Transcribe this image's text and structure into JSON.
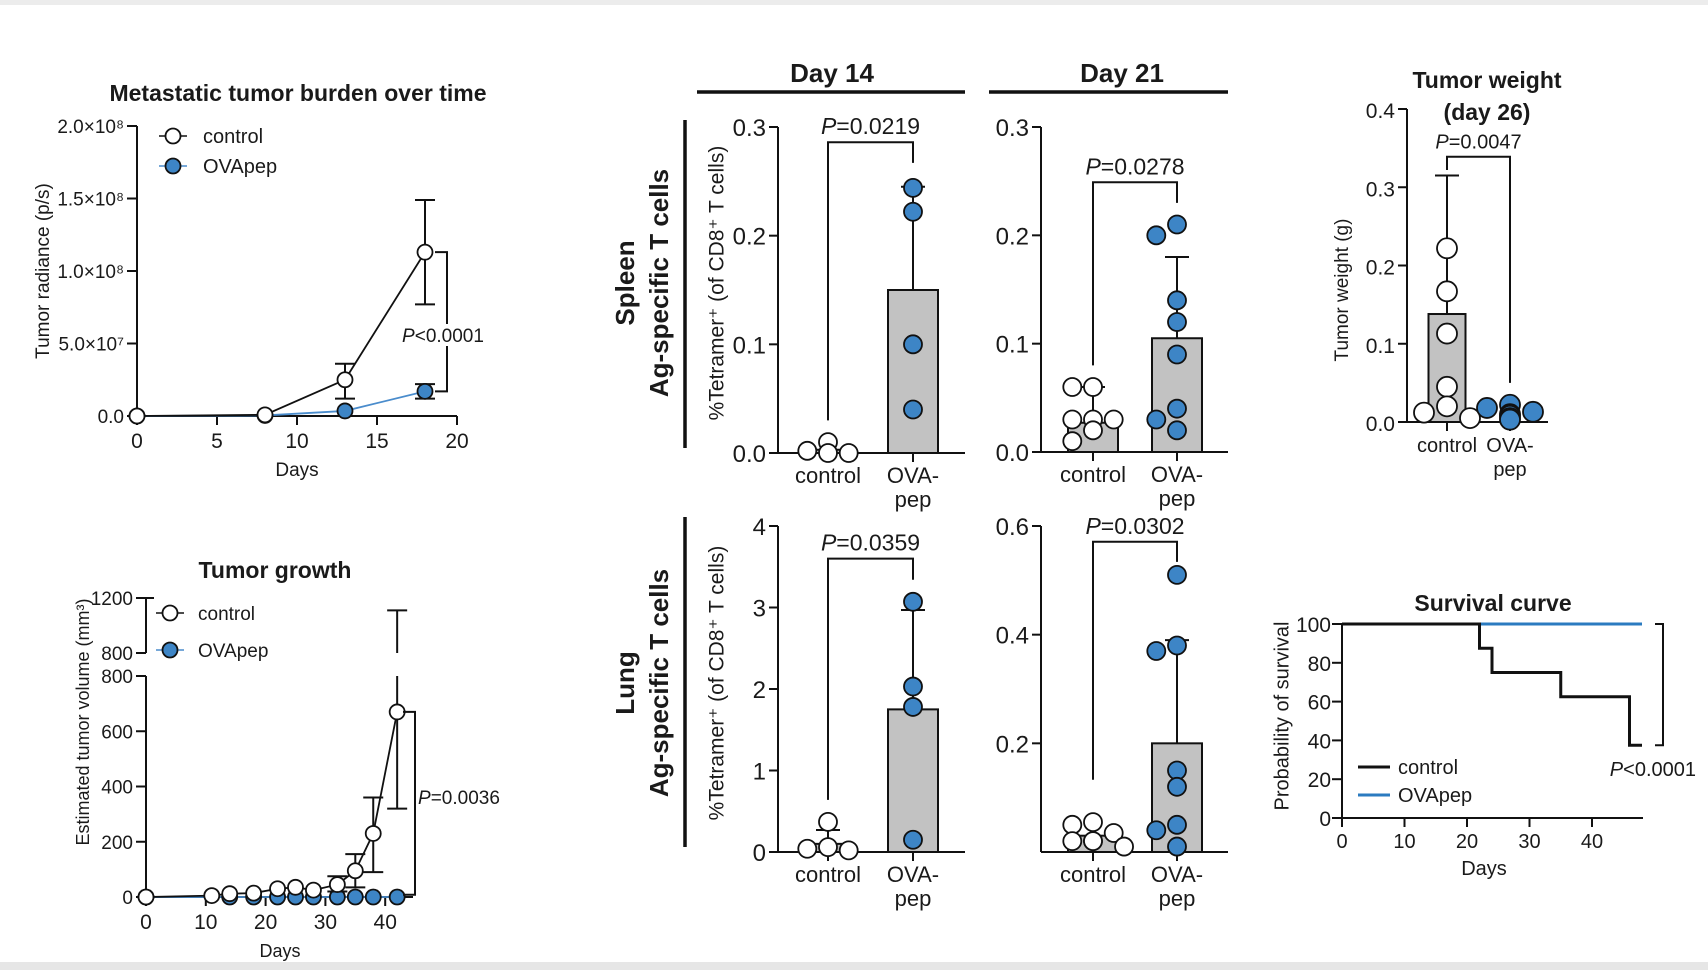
{
  "figure": {
    "col_headers": [
      "Day 14",
      "Day 21"
    ],
    "row_labels": [
      {
        "organ": "Spleen",
        "subtitle": "Ag-specific T cells"
      },
      {
        "organ": "Lung",
        "subtitle": "Ag-specific T cells"
      }
    ],
    "colors": {
      "control_fill": "#ffffff",
      "ovapep_fill": "#3d85c6",
      "ovapep_line": "#4a8ccc",
      "survival_blue": "#2b7bc0",
      "bar_gray": "#c2c2c2",
      "axis": "#111111"
    }
  },
  "chart_data": [
    {
      "id": "metastatic_burden",
      "type": "line",
      "title": "Metastatic tumor burden over time",
      "xlabel": "Days",
      "ylabel": "Tumor radiance (p/s)",
      "xlim": [
        0,
        20
      ],
      "ylim": [
        0,
        200000000
      ],
      "xticks": [
        0,
        5,
        10,
        15,
        20
      ],
      "xtick_labels": [
        "0",
        "5",
        "10",
        "15",
        "20"
      ],
      "yticks": [
        0,
        50000000,
        100000000,
        150000000,
        200000000
      ],
      "ytick_labels": [
        "0.0",
        "5.0×10⁷",
        "1.0×10⁸",
        "1.5×10⁸",
        "2.0×10⁸"
      ],
      "legend": "top-left",
      "series": [
        {
          "name": "control",
          "marker": "open",
          "x": [
            0,
            8,
            13,
            18
          ],
          "y": [
            0,
            800000,
            25000000,
            113000000
          ],
          "err_low": [
            0,
            800000,
            12000000,
            77000000
          ],
          "err_high": [
            0,
            800000,
            36000000,
            149000000
          ]
        },
        {
          "name": "OVApep",
          "marker": "filled",
          "x": [
            0,
            8,
            13,
            18
          ],
          "y": [
            0,
            400000,
            3500000,
            17000000
          ],
          "err_low": [
            0,
            400000,
            3500000,
            12000000
          ],
          "err_high": [
            0,
            400000,
            3500000,
            22000000
          ]
        }
      ],
      "significance": {
        "label": "P<0.0001",
        "x": 18,
        "y_range": [
          17000000,
          113000000
        ]
      }
    },
    {
      "id": "tumor_growth",
      "type": "line",
      "title": "Tumor growth",
      "xlabel": "Days",
      "ylabel": "Estimated tumor volume (mm³)",
      "xlim": [
        0,
        44
      ],
      "ylim": [
        0,
        1200
      ],
      "y_break": 800,
      "xticks": [
        0,
        10,
        20,
        30,
        40
      ],
      "xtick_labels": [
        "0",
        "10",
        "20",
        "30",
        "40"
      ],
      "yticks": [
        0,
        200,
        400,
        600,
        800
      ],
      "ytick_labels": [
        "0",
        "200",
        "400",
        "600",
        "800"
      ],
      "yticks_upper": [
        800,
        1200
      ],
      "ytick_labels_upper": [
        "800",
        "1200"
      ],
      "legend": "top-left",
      "series": [
        {
          "name": "control",
          "marker": "open",
          "x": [
            0,
            11,
            14,
            18,
            22,
            25,
            28,
            32,
            35,
            38,
            42
          ],
          "y": [
            0,
            5,
            12,
            14,
            30,
            35,
            25,
            45,
            95,
            230,
            670
          ],
          "err_low": [
            0,
            5,
            12,
            14,
            30,
            35,
            25,
            20,
            35,
            90,
            320
          ],
          "err_high": [
            0,
            5,
            12,
            14,
            30,
            35,
            25,
            75,
            155,
            360,
            1110
          ]
        },
        {
          "name": "OVApep",
          "marker": "filled",
          "x": [
            0,
            14,
            18,
            22,
            25,
            28,
            32,
            35,
            38,
            42
          ],
          "y": [
            0,
            0,
            0,
            0,
            0,
            0,
            0,
            0,
            0,
            0
          ],
          "err_low": [
            0,
            0,
            0,
            0,
            0,
            0,
            0,
            0,
            0,
            0
          ],
          "err_high": [
            0,
            0,
            0,
            0,
            0,
            0,
            0,
            0,
            0,
            0
          ]
        }
      ],
      "significance": {
        "label": "P=0.0036",
        "x": 42,
        "y_range": [
          8,
          670
        ]
      }
    },
    {
      "id": "spleen_day14",
      "type": "bar",
      "row": 0,
      "col": 0,
      "ylabel": "%Tetramer⁺ (of CD8⁺ T cells)",
      "ylim": [
        0,
        0.3
      ],
      "yticks": [
        0,
        0.1,
        0.2,
        0.3
      ],
      "ytick_labels": [
        "0.0",
        "0.1",
        "0.2",
        "0.3"
      ],
      "groups": [
        {
          "name": "control",
          "label_lines": [
            "control"
          ],
          "mean": 0.003,
          "sd_high": 0.003,
          "points": [
            0.01,
            0.002,
            0.0,
            0.0
          ],
          "style": "open"
        },
        {
          "name": "OVA-pep",
          "label_lines": [
            "OVA-",
            "pep"
          ],
          "mean": 0.15,
          "sd_high": 0.245,
          "points": [
            0.244,
            0.222,
            0.1,
            0.04
          ],
          "style": "filled"
        }
      ],
      "significance": {
        "label": "P=0.0219",
        "top": 0.286,
        "left_end": 0.03,
        "right_end": 0.267
      }
    },
    {
      "id": "spleen_day21",
      "type": "bar",
      "row": 0,
      "col": 1,
      "ylim": [
        0,
        0.3
      ],
      "yticks": [
        0,
        0.1,
        0.2,
        0.3
      ],
      "ytick_labels": [
        "0.0",
        "0.1",
        "0.2",
        "0.3"
      ],
      "groups": [
        {
          "name": "control",
          "label_lines": [
            "control"
          ],
          "mean": 0.027,
          "sd_high": 0.06,
          "points": [
            0.06,
            0.06,
            0.03,
            0.03,
            0.03,
            0.02,
            0.01
          ],
          "style": "open"
        },
        {
          "name": "OVA-pep",
          "label_lines": [
            "OVA-",
            "pep"
          ],
          "mean": 0.105,
          "sd_high": 0.18,
          "points": [
            0.21,
            0.2,
            0.14,
            0.12,
            0.09,
            0.04,
            0.03,
            0.02
          ],
          "style": "filled"
        }
      ],
      "significance": {
        "label": "P=0.0278",
        "top": 0.249,
        "left_end": 0.08,
        "right_end": 0.23
      }
    },
    {
      "id": "lung_day14",
      "type": "bar",
      "row": 1,
      "col": 0,
      "ylabel": "%Tetramer⁺ (of CD8⁺ T cells)",
      "ylim": [
        0,
        4
      ],
      "yticks": [
        0,
        1,
        2,
        3,
        4
      ],
      "ytick_labels": [
        "0",
        "1",
        "2",
        "3",
        "4"
      ],
      "groups": [
        {
          "name": "control",
          "label_lines": [
            "control"
          ],
          "mean": 0.1,
          "sd_high": 0.27,
          "points": [
            0.37,
            0.06,
            0.04,
            0.02
          ],
          "style": "open"
        },
        {
          "name": "OVA-pep",
          "label_lines": [
            "OVA-",
            "pep"
          ],
          "mean": 1.75,
          "sd_high": 2.97,
          "points": [
            3.07,
            2.03,
            1.78,
            0.15
          ],
          "style": "filled"
        }
      ],
      "significance": {
        "label": "P=0.0359",
        "top": 3.6,
        "left_end": 0.64,
        "right_end": 3.34
      }
    },
    {
      "id": "lung_day21",
      "type": "bar",
      "row": 1,
      "col": 1,
      "ylim": [
        0,
        0.6
      ],
      "yticks": [
        0.2,
        0.4,
        0.6
      ],
      "ytick_labels": [
        "0.2",
        "0.4",
        "0.6"
      ],
      "groups": [
        {
          "name": "control",
          "label_lines": [
            "control"
          ],
          "mean": 0.03,
          "sd_high": 0.03,
          "points": [
            0.055,
            0.05,
            0.035,
            0.02,
            0.02,
            0.02,
            0.01
          ],
          "style": "open"
        },
        {
          "name": "OVA-pep",
          "label_lines": [
            "OVA-",
            "pep"
          ],
          "mean": 0.2,
          "sd_high": 0.39,
          "points": [
            0.51,
            0.38,
            0.37,
            0.15,
            0.12,
            0.05,
            0.04,
            0.01
          ],
          "style": "filled"
        }
      ],
      "significance": {
        "label": "P=0.0302",
        "top": 0.571,
        "left_end": 0.133,
        "right_end": 0.534
      }
    },
    {
      "id": "tumor_weight",
      "type": "bar",
      "title_lines": [
        "Tumor weight",
        "(day 26)"
      ],
      "ylabel": "Tumor weight (g)",
      "ylim": [
        0,
        0.4
      ],
      "yticks": [
        0,
        0.1,
        0.2,
        0.3,
        0.4
      ],
      "ytick_labels": [
        "0.0",
        "0.1",
        "0.2",
        "0.3",
        "0.4"
      ],
      "groups": [
        {
          "name": "control",
          "label_lines": [
            "control"
          ],
          "mean": 0.138,
          "sd_high": 0.315,
          "points": [
            0.222,
            0.167,
            0.113,
            0.045,
            0.02,
            0.012,
            0.005
          ],
          "style": "open"
        },
        {
          "name": "OVA-pep",
          "label_lines": [
            "OVA-",
            "pep"
          ],
          "mean": 0.01,
          "sd_high": 0.01,
          "points": [
            0.022,
            0.018,
            0.013,
            0.01,
            0.008,
            0.005,
            0.003
          ],
          "style": "filled",
          "no_bar": true
        }
      ],
      "significance": {
        "label": "P=0.0047",
        "top": 0.339,
        "left_end": 0.322,
        "right_end": 0.05
      }
    },
    {
      "id": "survival",
      "type": "line",
      "title": "Survival curve",
      "xlabel": "Days",
      "ylabel": "Probability of survival",
      "xlim": [
        0,
        48
      ],
      "ylim": [
        0,
        100
      ],
      "xticks": [
        0,
        10,
        20,
        30,
        40
      ],
      "xtick_labels": [
        "0",
        "10",
        "20",
        "30",
        "40"
      ],
      "yticks": [
        0,
        20,
        40,
        60,
        80,
        100
      ],
      "ytick_labels": [
        "0",
        "20",
        "40",
        "60",
        "80",
        "100"
      ],
      "legend": "bottom-left",
      "series": [
        {
          "name": "control",
          "step_x": [
            0,
            22,
            24,
            35,
            46,
            48
          ],
          "step_y": [
            100,
            87.5,
            75,
            62.5,
            37.5,
            37.5
          ]
        },
        {
          "name": "OVApep",
          "step_x": [
            0,
            48
          ],
          "step_y": [
            100,
            100
          ]
        }
      ],
      "significance": {
        "label": "P<0.0001",
        "y_range": [
          37.5,
          100
        ]
      }
    }
  ]
}
